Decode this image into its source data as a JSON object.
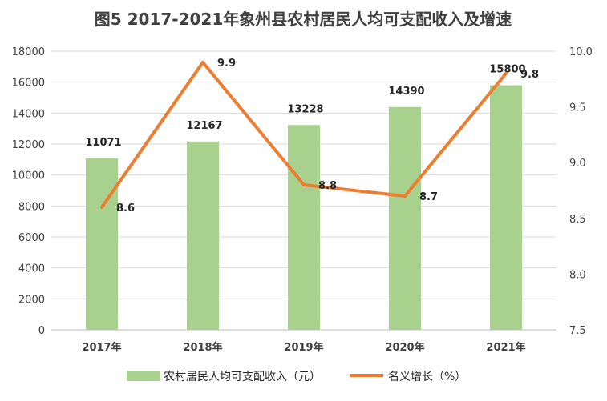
{
  "chart_data": {
    "type": "bar",
    "title": "图5  2017-2021年象州县农村居民人均可支配收入及增速",
    "categories": [
      "2017年",
      "2018年",
      "2019年",
      "2020年",
      "2021年"
    ],
    "series": [
      {
        "name": "农村居民人均可支配收入（元）",
        "type": "bar",
        "axis": "left",
        "color": "#a9d18e",
        "values": [
          11071,
          12167,
          13228,
          14390,
          15800
        ],
        "labels": [
          "11071",
          "12167",
          "13228",
          "14390",
          "15800"
        ]
      },
      {
        "name": "名义增长（%）",
        "type": "line",
        "axis": "right",
        "color": "#ed7d31",
        "values": [
          8.6,
          9.9,
          8.8,
          8.7,
          9.8
        ],
        "labels": [
          "8.6",
          "9.9",
          "8.8",
          "8.7",
          "9.8"
        ]
      }
    ],
    "y_left": {
      "min": 0,
      "max": 18000,
      "ticks": [
        "0",
        "2000",
        "4000",
        "6000",
        "8000",
        "10000",
        "12000",
        "14000",
        "16000",
        "18000"
      ]
    },
    "y_right": {
      "min": 7.5,
      "max": 10.0,
      "ticks": [
        "7.5",
        "8.0",
        "8.5",
        "9.0",
        "9.5",
        "10.0"
      ]
    },
    "grid": true,
    "legend": "bottom",
    "gridColor": "#d9d9d9"
  }
}
